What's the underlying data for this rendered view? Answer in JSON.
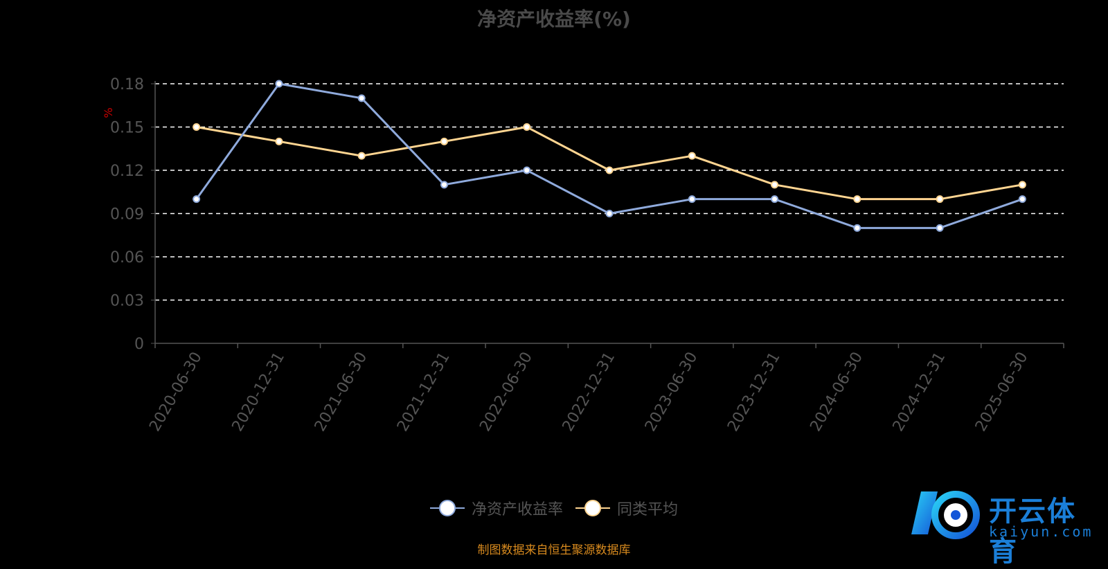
{
  "page": {
    "title": "净资产收益率(%)",
    "source": "制图数据来自恒生聚源数据库",
    "watermark": {
      "text": "开云体育",
      "sub": "kaiyun.com"
    }
  },
  "colors": {
    "series_1": "#8faadc",
    "series_2": "#ffd591",
    "grid": "#ffffff",
    "axis": "#555555",
    "tick": "#555555",
    "unit": "#cc0000",
    "source": "#d88a1e"
  },
  "chart_data": {
    "type": "line",
    "title": "净资产收益率(%)",
    "ylabel": "%",
    "ylim": [
      0,
      0.18
    ],
    "yticks": [
      "0",
      "0.03",
      "0.06",
      "0.09",
      "0.12",
      "0.15",
      "0.18"
    ],
    "grid": true,
    "legend_position": "bottom",
    "categories": [
      "2020-06-30",
      "2020-12-31",
      "2021-06-30",
      "2021-12-31",
      "2022-06-30",
      "2022-12-31",
      "2023-06-30",
      "2023-12-31",
      "2024-06-30",
      "2024-12-31",
      "2025-06-30"
    ],
    "series": [
      {
        "name": "净资产收益率",
        "values": [
          0.1,
          0.18,
          0.17,
          0.11,
          0.12,
          0.09,
          0.1,
          0.1,
          0.08,
          0.08,
          0.1
        ]
      },
      {
        "name": "同类平均",
        "values": [
          0.15,
          0.14,
          0.13,
          0.14,
          0.15,
          0.12,
          0.13,
          0.11,
          0.1,
          0.1,
          0.11
        ]
      }
    ]
  }
}
